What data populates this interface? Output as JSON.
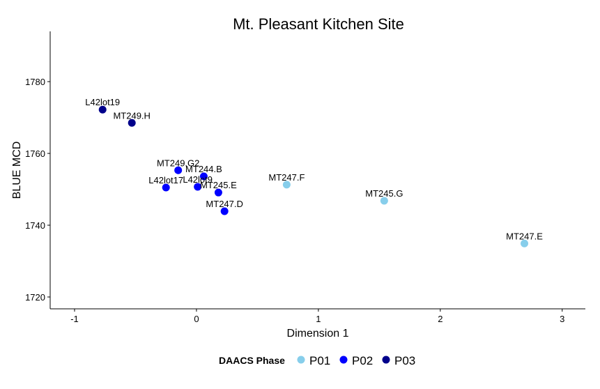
{
  "chart_data": {
    "type": "scatter",
    "title": "Mt. Pleasant Kitchen Site",
    "xlabel": "Dimension 1",
    "ylabel": "BLUE MCD",
    "xlim": [
      -1.2,
      3.19
    ],
    "ylim": [
      1716.7,
      1794
    ],
    "xticks": [
      -1,
      0,
      1,
      2,
      3
    ],
    "yticks": [
      1720,
      1740,
      1760,
      1780
    ],
    "grid": false,
    "legend": {
      "title": "DAACS Phase",
      "placement": "bottom",
      "entries": [
        {
          "label": "P01",
          "color": "#87CEEB"
        },
        {
          "label": "P02",
          "color": "#0000FF"
        },
        {
          "label": "P03",
          "color": "#00008B"
        }
      ]
    },
    "points": [
      {
        "label": "L42lot19",
        "x": -0.77,
        "y": 1772.2,
        "phase": "P03"
      },
      {
        "label": "MT249.H",
        "x": -0.53,
        "y": 1768.5,
        "phase": "P03"
      },
      {
        "label": "MT249.G2",
        "x": -0.15,
        "y": 1755.3,
        "phase": "P02"
      },
      {
        "label": "MT244.B",
        "x": 0.06,
        "y": 1753.6,
        "phase": "P02"
      },
      {
        "label": "L42lot17",
        "x": -0.25,
        "y": 1750.5,
        "phase": "P02"
      },
      {
        "label": "L42lot9",
        "x": 0.01,
        "y": 1750.7,
        "phase": "P02"
      },
      {
        "label": "MT245.E",
        "x": 0.18,
        "y": 1749.1,
        "phase": "P02"
      },
      {
        "label": "MT247.D",
        "x": 0.23,
        "y": 1743.9,
        "phase": "P02"
      },
      {
        "label": "MT247.F",
        "x": 0.74,
        "y": 1751.3,
        "phase": "P01"
      },
      {
        "label": "MT245.G",
        "x": 1.54,
        "y": 1746.8,
        "phase": "P01"
      },
      {
        "label": "MT247.E",
        "x": 2.69,
        "y": 1734.9,
        "phase": "P01"
      }
    ]
  }
}
